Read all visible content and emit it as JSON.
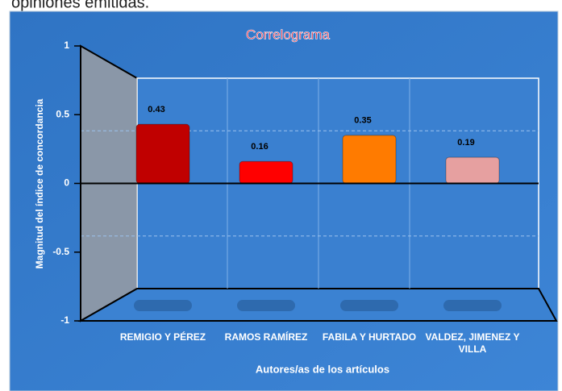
{
  "caption": "opiniones emitidas.",
  "chart_data": {
    "type": "bar",
    "title": "Correlograma",
    "x_label": "Autores/as de los artículos",
    "y_label": "Magnitud del índice de concordancia",
    "categories": [
      "REMIGIO Y PÉREZ",
      "RAMOS RAMÍREZ",
      "FABILA Y HURTADO",
      "VALDEZ, JIMENEZ Y VILLA"
    ],
    "values": [
      0.43,
      0.16,
      0.35,
      0.19
    ],
    "colors": [
      "#c00000",
      "#ff0000",
      "#ff7b00",
      "#e6a0a0"
    ],
    "ylim": [
      -1,
      1
    ],
    "yticks": [
      1,
      0.5,
      0,
      -0.5,
      -1
    ],
    "grid": true
  }
}
